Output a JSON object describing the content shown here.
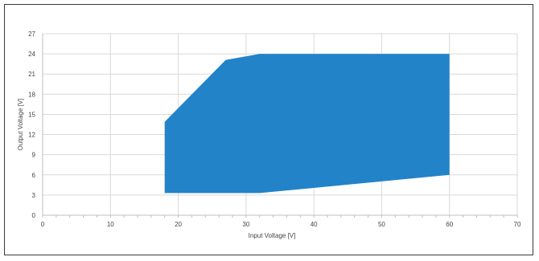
{
  "chart_data": {
    "type": "area",
    "xlabel": "Input Voltage [V]",
    "ylabel": "Output Voltage [V]",
    "xlim": [
      0,
      70
    ],
    "ylim": [
      0,
      27
    ],
    "x_ticks": [
      0,
      10,
      20,
      30,
      40,
      50,
      60,
      70
    ],
    "y_ticks": [
      0,
      3,
      6,
      9,
      12,
      15,
      18,
      21,
      24,
      27
    ],
    "grid": true,
    "series": [
      {
        "color": "#2283C9",
        "region": [
          {
            "x": 18,
            "y": 3.3
          },
          {
            "x": 18,
            "y": 13.9
          },
          {
            "x": 27,
            "y": 23.1
          },
          {
            "x": 32,
            "y": 24.0
          },
          {
            "x": 60,
            "y": 24.0
          },
          {
            "x": 60,
            "y": 6.0
          },
          {
            "x": 32,
            "y": 3.3
          }
        ]
      }
    ]
  }
}
